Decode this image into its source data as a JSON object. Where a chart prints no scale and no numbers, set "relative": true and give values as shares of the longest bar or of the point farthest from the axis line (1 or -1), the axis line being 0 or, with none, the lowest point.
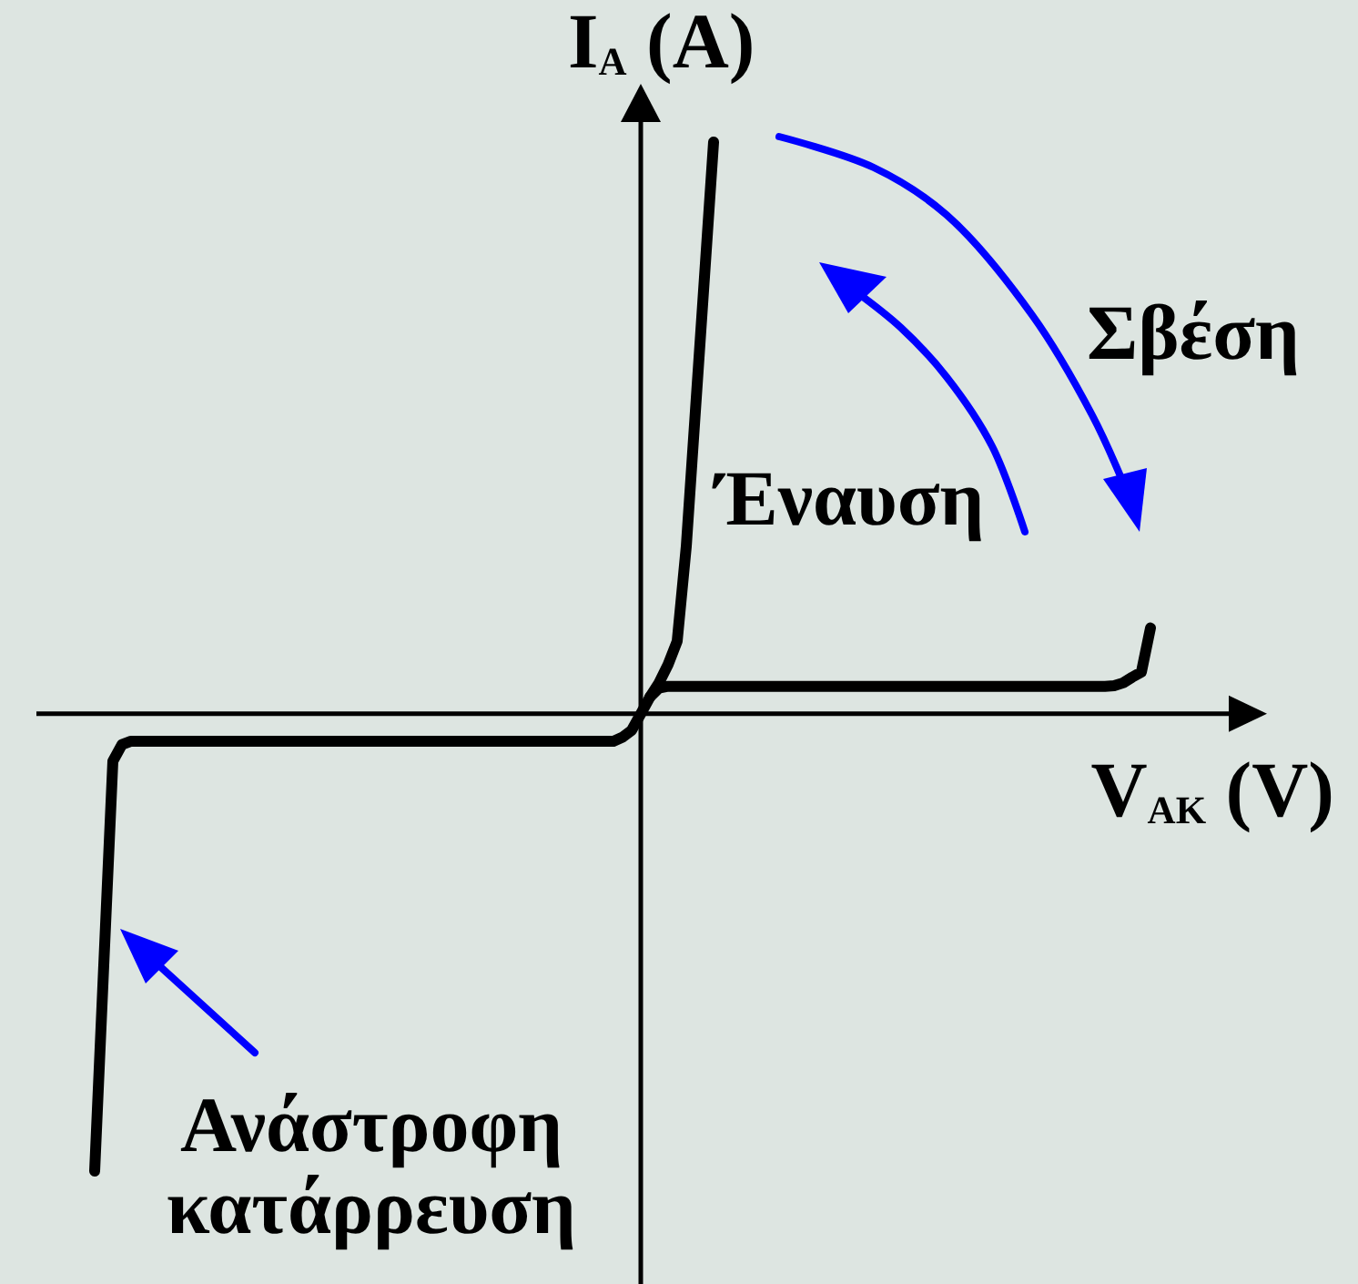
{
  "chart_data": {
    "type": "line",
    "relative": true,
    "xlabel": "V$_{AK}$ (V)",
    "ylabel": "I$_{A}$ (A)",
    "categories": [
      null,
      null,
      null,
      null,
      null,
      null,
      null,
      null,
      null,
      null,
      null,
      null,
      null,
      null,
      null,
      null,
      null,
      null,
      null,
      null,
      null,
      null,
      null,
      null,
      null,
      null,
      null,
      null,
      null,
      null,
      null,
      null,
      null,
      null,
      null,
      null,
      null,
      null,
      null,
      null,
      null,
      null,
      null,
      null,
      null,
      null,
      null,
      null,
      null,
      null,
      null,
      null,
      null,
      null,
      null,
      null,
      null,
      null,
      null,
      null,
      null,
      null,
      null,
      null,
      null,
      null,
      null,
      null,
      null,
      null,
      null,
      null,
      null,
      null,
      null,
      null,
      null,
      null,
      null,
      null,
      null,
      null,
      null,
      null,
      null,
      null,
      null,
      null,
      null,
      null,
      null,
      null,
      null,
      null,
      null,
      null,
      null,
      null,
      null,
      null,
      null,
      null,
      null,
      null,
      null,
      null,
      null,
      null,
      null,
      null,
      null,
      null,
      null,
      null,
      null,
      null,
      null
    ],
    "series": [
      {
        "type": "line",
        "color": "#000000",
        "values": [
          -0.8,
          -0.44,
          -0.083,
          -0.054,
          -0.048,
          -0.048,
          -0.048,
          -0.048,
          -0.048,
          -0.048,
          -0.048,
          -0.048,
          -0.048,
          -0.048,
          -0.048,
          -0.048,
          -0.048,
          -0.048,
          -0.048,
          -0.048,
          -0.048,
          -0.048,
          -0.048,
          -0.048,
          -0.048,
          -0.048,
          -0.048,
          -0.048,
          -0.048,
          -0.048,
          -0.048,
          -0.048,
          -0.048,
          -0.048,
          -0.048,
          -0.048,
          -0.048,
          -0.048,
          -0.048,
          -0.048,
          -0.048,
          -0.048,
          -0.048,
          -0.048,
          -0.048,
          -0.048,
          -0.048,
          -0.048,
          -0.048,
          -0.048,
          -0.048,
          -0.048,
          -0.048,
          -0.048,
          -0.048,
          -0.048,
          -0.048,
          -0.048,
          -0.041,
          -0.029,
          0,
          0.029,
          0.045,
          0.048,
          0.048,
          0.048,
          0.048,
          0.048,
          0.048,
          0.048,
          0.048,
          0.048,
          0.048,
          0.048,
          0.048,
          0.048,
          0.048,
          0.048,
          0.048,
          0.048,
          0.048,
          0.048,
          0.048,
          0.048,
          0.048,
          0.048,
          0.048,
          0.048,
          0.048,
          0.048,
          0.048,
          0.048,
          0.048,
          0.048,
          0.048,
          0.048,
          0.048,
          0.048,
          0.048,
          0.048,
          0.048,
          0.048,
          0.048,
          0.048,
          0.048,
          0.048,
          0.048,
          0.048,
          0.048,
          0.048,
          0.048,
          0.048,
          0.049,
          0.054,
          0.064,
          0.073,
          0.15
        ]
      },
      {
        "type": "line",
        "color": "#000000",
        "values": [
          null,
          null,
          null,
          null,
          null,
          null,
          null,
          null,
          null,
          null,
          null,
          null,
          null,
          null,
          null,
          null,
          null,
          null,
          null,
          null,
          null,
          null,
          null,
          null,
          null,
          null,
          null,
          null,
          null,
          null,
          null,
          null,
          null,
          null,
          null,
          null,
          null,
          null,
          null,
          null,
          null,
          null,
          null,
          null,
          null,
          null,
          null,
          null,
          null,
          null,
          null,
          null,
          null,
          null,
          null,
          null,
          null,
          null,
          null,
          null,
          null,
          0.029,
          0.054,
          0.086,
          0.127,
          0.293,
          0.529,
          0.764,
          1,
          null,
          null,
          null,
          null,
          null,
          null,
          null,
          null,
          null,
          null,
          null,
          null,
          null,
          null,
          null,
          null,
          null,
          null,
          null,
          null,
          null,
          null,
          null,
          null,
          null,
          null,
          null,
          null,
          null,
          null,
          null,
          null,
          null,
          null,
          null,
          null,
          null,
          null,
          null,
          null,
          null,
          null,
          null,
          null,
          null,
          null,
          null,
          null
        ]
      }
    ],
    "annotations": [
      "Έναυση",
      "Σβέση",
      "Ανάστροφη κατάρρευση"
    ]
  }
}
